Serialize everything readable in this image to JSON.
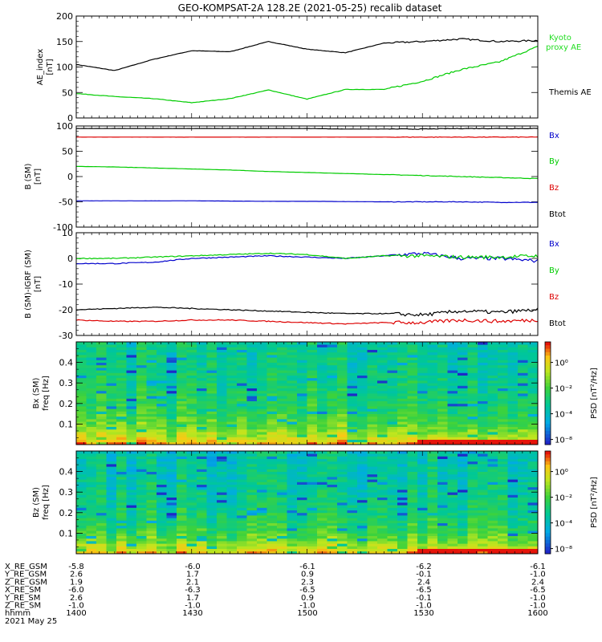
{
  "title": "GEO-KOMPSAT-2A 128.2E (2021-05-25) recalib dataset",
  "colors": {
    "black": "#000000",
    "green": "#00cc00",
    "blue": "#0000cc",
    "red": "#dd0000",
    "bright_green": "#22dd22"
  },
  "chart_data": [
    {
      "type": "line",
      "id": "ae",
      "ylabel": [
        "AE_index",
        "[nT]"
      ],
      "ylim": [
        0,
        200
      ],
      "yticks": [
        0,
        50,
        100,
        150,
        200
      ],
      "x": [
        "14:00",
        "14:10",
        "14:20",
        "14:30",
        "14:40",
        "14:50",
        "15:00",
        "15:10",
        "15:20",
        "15:30",
        "15:40",
        "15:50",
        "16:00"
      ],
      "series": [
        {
          "name": "Themis AE",
          "color": "#000000",
          "values": [
            105,
            93,
            115,
            132,
            130,
            150,
            135,
            128,
            147,
            150,
            155,
            150,
            152
          ]
        },
        {
          "name": "Kyoto proxy AE",
          "color": "#00cc00",
          "values": [
            48,
            42,
            38,
            30,
            38,
            55,
            37,
            56,
            56,
            72,
            95,
            110,
            140
          ]
        }
      ]
    },
    {
      "type": "line",
      "id": "b_sm",
      "ylabel": [
        "B (SM)",
        "[nT]"
      ],
      "ylim": [
        -100,
        100
      ],
      "yticks": [
        -100,
        -50,
        0,
        50,
        100
      ],
      "x": [
        "14:00",
        "14:10",
        "14:20",
        "14:30",
        "14:40",
        "14:50",
        "15:00",
        "15:10",
        "15:20",
        "15:30",
        "15:40",
        "15:50",
        "16:00"
      ],
      "series": [
        {
          "name": "Bx",
          "color": "#0000cc",
          "values": [
            -48,
            -48,
            -48,
            -48,
            -48.5,
            -49,
            -49,
            -49.5,
            -50,
            -50,
            -50,
            -51,
            -51
          ]
        },
        {
          "name": "By",
          "color": "#00cc00",
          "values": [
            20,
            19,
            17,
            15,
            13,
            10,
            8,
            6,
            4,
            2,
            0,
            -2,
            -4
          ]
        },
        {
          "name": "Bz",
          "color": "#dd0000",
          "values": [
            78,
            78,
            78,
            78,
            78,
            78,
            78,
            78,
            78,
            78,
            78,
            78,
            78
          ]
        },
        {
          "name": "Btot",
          "color": "#000000",
          "values": [
            95,
            95,
            95,
            95,
            95,
            95,
            95,
            94,
            94,
            94,
            95,
            95,
            95
          ]
        }
      ]
    },
    {
      "type": "line",
      "id": "db_sm",
      "ylabel": [
        "B (SM)-IGRF (SM)",
        "[nT]"
      ],
      "ylim": [
        -30,
        10
      ],
      "yticks": [
        -30,
        -20,
        -10,
        0,
        10
      ],
      "x": [
        "14:00",
        "14:10",
        "14:20",
        "14:30",
        "14:40",
        "14:50",
        "15:00",
        "15:10",
        "15:20",
        "15:30",
        "15:40",
        "15:50",
        "16:00"
      ],
      "series": [
        {
          "name": "Bx",
          "color": "#0000cc",
          "values": [
            -2,
            -2,
            -1.5,
            0,
            0.5,
            1,
            0.5,
            0,
            1,
            2,
            0,
            0,
            -1
          ]
        },
        {
          "name": "By",
          "color": "#00cc00",
          "values": [
            0,
            0,
            0.5,
            1,
            1.5,
            2,
            1.5,
            0,
            1,
            1,
            0.5,
            0.5,
            1
          ]
        },
        {
          "name": "Bz",
          "color": "#dd0000",
          "values": [
            -24,
            -24.5,
            -24.5,
            -24,
            -24,
            -24.5,
            -25,
            -25.5,
            -25,
            -25,
            -24,
            -24.5,
            -24
          ]
        },
        {
          "name": "Btot",
          "color": "#000000",
          "values": [
            -20,
            -19.5,
            -19,
            -19.5,
            -20,
            -20.5,
            -21,
            -21.5,
            -21.5,
            -22,
            -20.5,
            -21,
            -20
          ]
        }
      ]
    },
    {
      "type": "heatmap",
      "id": "bx_spec",
      "ylabel": [
        "Bx (SM)",
        "freq [Hz]"
      ],
      "ylim": [
        0,
        0.5
      ],
      "yticks": [
        0.1,
        0.2,
        0.3,
        0.4
      ],
      "colorbar": {
        "label": "PSD [nT²/Hz]",
        "ticks": [
          "10⁰",
          "10⁻²",
          "10⁻⁴",
          "10⁻⁸"
        ]
      },
      "x_range": [
        "14:00",
        "16:00"
      ],
      "description_levels": "high power (yellow/red) at low frequency, green mid, blue streaks at high frequency"
    },
    {
      "type": "heatmap",
      "id": "bz_spec",
      "ylabel": [
        "Bz (SM)",
        "freq [Hz]"
      ],
      "ylim": [
        0,
        0.5
      ],
      "yticks": [
        0.1,
        0.2,
        0.3,
        0.4
      ],
      "colorbar": {
        "label": "PSD [nT²/Hz]",
        "ticks": [
          "10⁰",
          "10⁻²",
          "10⁻⁴",
          "10⁻⁸"
        ]
      },
      "x_range": [
        "14:00",
        "16:00"
      ]
    }
  ],
  "legend_labels": {
    "ae": [
      "Kyoto",
      "proxy AE",
      "Themis AE"
    ],
    "b_sm": [
      "Bx",
      "By",
      "Bz",
      "Btot"
    ],
    "db_sm": [
      "Bx",
      "By",
      "Bz",
      "Btot"
    ]
  },
  "orbit_table": {
    "rows": [
      {
        "label": "X_RE_GSM",
        "values": [
          "-5.8",
          "-6.0",
          "-6.1",
          "-6.2",
          "-6.1"
        ]
      },
      {
        "label": "Y_RE_GSM",
        "values": [
          "2.6",
          "1.7",
          "0.9",
          "-0.1",
          "-1.0"
        ]
      },
      {
        "label": "Z_RE_GSM",
        "values": [
          "1.9",
          "2.1",
          "2.3",
          "2.4",
          "2.4"
        ]
      },
      {
        "label": "X_RE_SM",
        "values": [
          "-6.0",
          "-6.3",
          "-6.5",
          "-6.5",
          "-6.5"
        ]
      },
      {
        "label": "Y_RE_SM",
        "values": [
          "2.6",
          "1.7",
          "0.9",
          "-0.1",
          "-1.0"
        ]
      },
      {
        "label": "Z_RE_SM",
        "values": [
          "-1.0",
          "-1.0",
          "-1.0",
          "-1.0",
          "-1.0"
        ]
      },
      {
        "label": "hhmm",
        "values": [
          "1400",
          "1430",
          "1500",
          "1530",
          "1600"
        ]
      }
    ],
    "date": "2021 May 25"
  }
}
